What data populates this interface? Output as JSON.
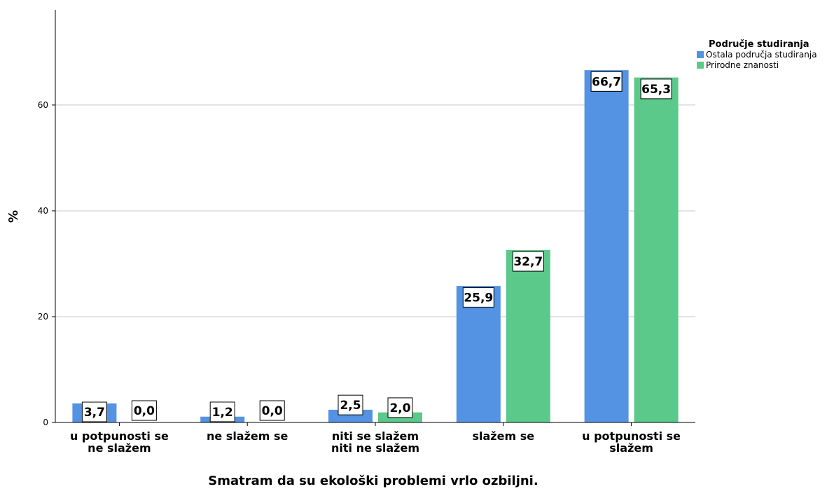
{
  "chart_data": {
    "type": "bar",
    "categories": [
      [
        "u potpunosti se",
        "ne slažem"
      ],
      [
        "ne slažem se"
      ],
      [
        "niti se slažem",
        "niti ne slažem"
      ],
      [
        "slažem se"
      ],
      [
        "u potpunosti se",
        "slažem"
      ]
    ],
    "series": [
      {
        "name": "Ostala područja studiranja",
        "color": "#5493E3",
        "values": [
          3.7,
          1.2,
          2.5,
          25.9,
          66.7
        ],
        "labels": [
          "3,7",
          "1,2",
          "2,5",
          "25,9",
          "66,7"
        ]
      },
      {
        "name": "Prirodne znanosti",
        "color": "#5BC98A",
        "values": [
          0.0,
          0.0,
          2.0,
          32.7,
          65.3
        ],
        "labels": [
          "0,0",
          "0,0",
          "2,0",
          "32,7",
          "65,3"
        ]
      }
    ],
    "xlabel": "Smatram da su ekološki problemi vrlo ozbiljni.",
    "ylabel": "%",
    "ylim": [
      0,
      78
    ],
    "yticks": [
      0,
      20,
      40,
      60
    ],
    "legend": {
      "title": "Područje studiranja",
      "position": "top-right"
    },
    "grid": true
  }
}
